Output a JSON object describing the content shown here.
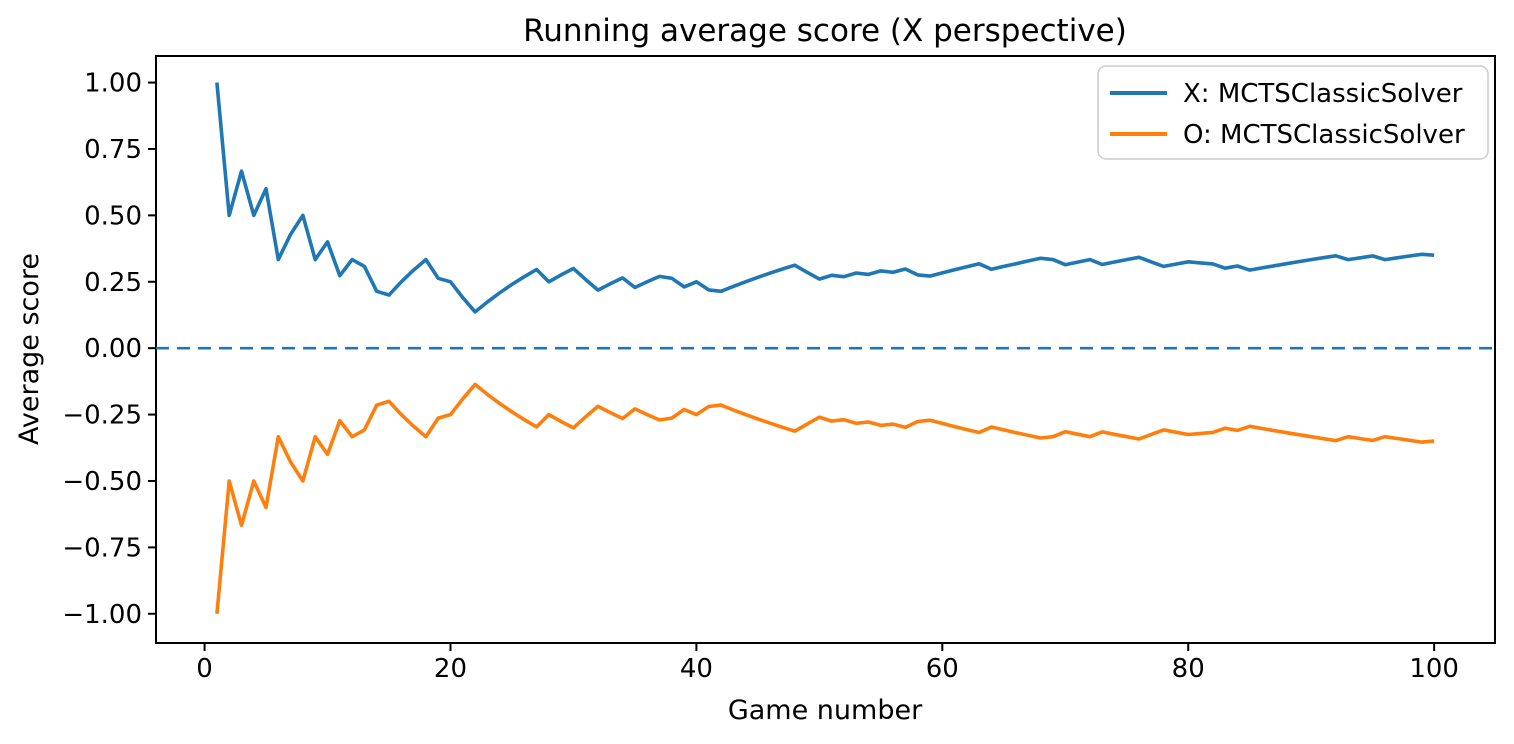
{
  "chart_data": {
    "type": "line",
    "title": "Running average score (X perspective)",
    "xlabel": "Game number",
    "ylabel": "Average score",
    "x_ticks": [
      0,
      20,
      40,
      60,
      80,
      100
    ],
    "y_ticks": [
      1.0,
      0.75,
      0.5,
      0.25,
      0.0,
      -0.25,
      -0.5,
      -0.75,
      -1.0
    ],
    "xlim": [
      -3.95,
      104.95
    ],
    "ylim": [
      -1.11,
      1.1
    ],
    "grid": false,
    "zero_line": {
      "y": 0,
      "style": "dashed",
      "color": "#1f77b4"
    },
    "legend": {
      "position": "upper right",
      "entries": [
        {
          "label": "X: MCTSClassicSolver",
          "color": "#1f77b4"
        },
        {
          "label": "O: MCTSClassicSolver",
          "color": "#ff7f0e"
        }
      ]
    },
    "x": [
      1,
      2,
      3,
      4,
      5,
      6,
      7,
      8,
      9,
      10,
      11,
      12,
      13,
      14,
      15,
      16,
      17,
      18,
      19,
      20,
      21,
      22,
      23,
      24,
      25,
      26,
      27,
      28,
      29,
      30,
      31,
      32,
      33,
      34,
      35,
      36,
      37,
      38,
      39,
      40,
      41,
      42,
      43,
      44,
      45,
      46,
      47,
      48,
      49,
      50,
      51,
      52,
      53,
      54,
      55,
      56,
      57,
      58,
      59,
      60,
      61,
      62,
      63,
      64,
      65,
      66,
      67,
      68,
      69,
      70,
      71,
      72,
      73,
      74,
      75,
      76,
      77,
      78,
      79,
      80,
      81,
      82,
      83,
      84,
      85,
      86,
      87,
      88,
      89,
      90,
      91,
      92,
      93,
      94,
      95,
      96,
      97,
      98,
      99,
      100
    ],
    "series": [
      {
        "id": "x-series-line",
        "name": "X: MCTSClassicSolver",
        "color": "#1f77b4",
        "values": [
          1.0,
          0.5,
          0.6667,
          0.5,
          0.6,
          0.3333,
          0.4286,
          0.5,
          0.3333,
          0.4,
          0.2727,
          0.3333,
          0.3077,
          0.2143,
          0.2,
          0.25,
          0.2941,
          0.3333,
          0.2632,
          0.25,
          0.1905,
          0.1364,
          0.1739,
          0.2083,
          0.24,
          0.2692,
          0.2963,
          0.25,
          0.2759,
          0.3,
          0.2581,
          0.2188,
          0.2424,
          0.2647,
          0.2286,
          0.25,
          0.2703,
          0.2632,
          0.2308,
          0.25,
          0.2195,
          0.2143,
          0.2326,
          0.25,
          0.2667,
          0.2826,
          0.2979,
          0.3125,
          0.2857,
          0.26,
          0.2745,
          0.2692,
          0.283,
          0.2778,
          0.2909,
          0.2857,
          0.2982,
          0.2759,
          0.2712,
          0.2833,
          0.2951,
          0.3065,
          0.3175,
          0.2969,
          0.3077,
          0.3182,
          0.3284,
          0.3382,
          0.3333,
          0.3143,
          0.3239,
          0.3333,
          0.3151,
          0.3243,
          0.3333,
          0.3421,
          0.3247,
          0.3077,
          0.3165,
          0.325,
          0.321,
          0.3171,
          0.3012,
          0.3095,
          0.2941,
          0.3023,
          0.3103,
          0.3182,
          0.3258,
          0.3333,
          0.3407,
          0.3478,
          0.3333,
          0.3404,
          0.3474,
          0.3333,
          0.3402,
          0.3469,
          0.3535,
          0.35
        ]
      },
      {
        "id": "o-series-line",
        "name": "O: MCTSClassicSolver",
        "color": "#ff7f0e",
        "values": [
          -1.0,
          -0.5,
          -0.6667,
          -0.5,
          -0.6,
          -0.3333,
          -0.4286,
          -0.5,
          -0.3333,
          -0.4,
          -0.2727,
          -0.3333,
          -0.3077,
          -0.2143,
          -0.2,
          -0.25,
          -0.2941,
          -0.3333,
          -0.2632,
          -0.25,
          -0.1905,
          -0.1364,
          -0.1739,
          -0.2083,
          -0.24,
          -0.2692,
          -0.2963,
          -0.25,
          -0.2759,
          -0.3,
          -0.2581,
          -0.2188,
          -0.2424,
          -0.2647,
          -0.2286,
          -0.25,
          -0.2703,
          -0.2632,
          -0.2308,
          -0.25,
          -0.2195,
          -0.2143,
          -0.2326,
          -0.25,
          -0.2667,
          -0.2826,
          -0.2979,
          -0.3125,
          -0.2857,
          -0.26,
          -0.2745,
          -0.2692,
          -0.283,
          -0.2778,
          -0.2909,
          -0.2857,
          -0.2982,
          -0.2759,
          -0.2712,
          -0.2833,
          -0.2951,
          -0.3065,
          -0.3175,
          -0.2969,
          -0.3077,
          -0.3182,
          -0.3284,
          -0.3382,
          -0.3333,
          -0.3143,
          -0.3239,
          -0.3333,
          -0.3151,
          -0.3243,
          -0.3333,
          -0.3421,
          -0.3247,
          -0.3077,
          -0.3165,
          -0.325,
          -0.321,
          -0.3171,
          -0.3012,
          -0.3095,
          -0.2941,
          -0.3023,
          -0.3103,
          -0.3182,
          -0.3258,
          -0.3333,
          -0.3407,
          -0.3478,
          -0.3333,
          -0.3404,
          -0.3474,
          -0.3333,
          -0.3402,
          -0.3469,
          -0.3535,
          -0.35
        ]
      }
    ]
  }
}
